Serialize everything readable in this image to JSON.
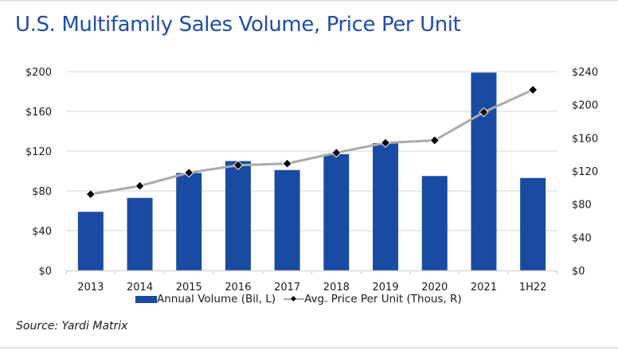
{
  "title": "U.S. Multifamily Sales Volume, Price Per Unit",
  "source": "Source: Yardi Matrix",
  "colors": {
    "title": "#1f4ea6",
    "bar": "#1a4ba3",
    "line": "#aaaaaa",
    "marker": "#000000",
    "grid": "#e3e3e3"
  },
  "chart_data": {
    "type": "bar",
    "title": "U.S. Multifamily Sales Volume, Price Per Unit",
    "categories": [
      "2013",
      "2014",
      "2015",
      "2016",
      "2017",
      "2018",
      "2019",
      "2020",
      "2021",
      "1H22"
    ],
    "series": [
      {
        "name": "Annual Volume (Bil, L)",
        "type": "bar",
        "axis": "left",
        "values": [
          59,
          73,
          98,
          110,
          101,
          117,
          128,
          95,
          199,
          93
        ]
      },
      {
        "name": "Avg. Price Per Unit (Thous, R)",
        "type": "line",
        "axis": "right",
        "values": [
          92,
          102,
          118,
          127,
          129,
          142,
          154,
          157,
          191,
          218
        ]
      }
    ],
    "left_axis": {
      "ylim": [
        0,
        200
      ],
      "ticks": [
        0,
        40,
        80,
        120,
        160,
        200
      ],
      "tick_labels": [
        "$0",
        "$40",
        "$80",
        "$120",
        "$160",
        "$200"
      ]
    },
    "right_axis": {
      "ylim": [
        0,
        240
      ],
      "ticks": [
        0,
        40,
        80,
        120,
        160,
        200,
        240
      ],
      "tick_labels": [
        "$0",
        "$40",
        "$80",
        "$120",
        "$160",
        "$200",
        "$240"
      ]
    },
    "xlabel": "",
    "ylabel": "",
    "grid": true,
    "legend": {
      "placement": "bottom",
      "entries": [
        "Annual Volume (Bil, L)",
        "Avg. Price Per Unit (Thous, R)"
      ]
    }
  }
}
